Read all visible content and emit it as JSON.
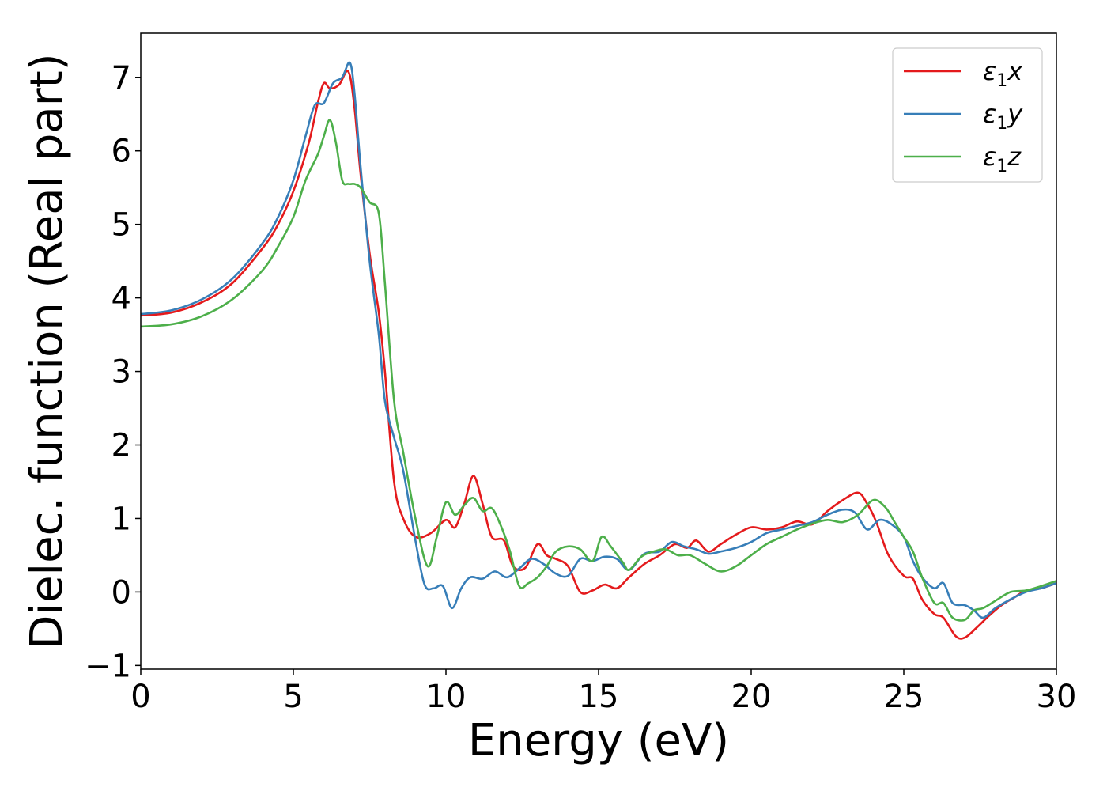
{
  "chart_data": {
    "type": "line",
    "xlabel": "Energy (eV)",
    "ylabel": "Dielec. function (Real part)",
    "xlim": [
      0,
      30
    ],
    "ylim": [
      -1.05,
      7.6
    ],
    "xticks": [
      0,
      5,
      10,
      15,
      20,
      25,
      30
    ],
    "xtick_labels": [
      "0",
      "5",
      "10",
      "15",
      "20",
      "25",
      "30"
    ],
    "yticks": [
      -1,
      0,
      1,
      2,
      3,
      4,
      5,
      6,
      7
    ],
    "ytick_labels": [
      "−1",
      "0",
      "1",
      "2",
      "3",
      "4",
      "5",
      "6",
      "7"
    ],
    "grid": false,
    "legend_position": "top-right",
    "series": [
      {
        "name": "ε1x",
        "legend_main": "ε",
        "legend_sub": "1",
        "legend_tail": "x",
        "color": "#e41a1c",
        "x": [
          0,
          1,
          2,
          3,
          4,
          4.5,
          5,
          5.5,
          5.8,
          6.0,
          6.2,
          6.5,
          6.8,
          7.0,
          7.2,
          7.5,
          7.8,
          8.0,
          8.3,
          8.6,
          9.0,
          9.5,
          10.0,
          10.3,
          10.6,
          10.9,
          11.2,
          11.5,
          11.9,
          12.2,
          12.6,
          13.0,
          13.3,
          13.6,
          14.0,
          14.4,
          14.8,
          15.2,
          15.6,
          16.0,
          16.5,
          17.0,
          17.5,
          17.9,
          18.2,
          18.6,
          19.0,
          19.5,
          20.0,
          20.5,
          21.0,
          21.5,
          22.0,
          22.5,
          23.0,
          23.5,
          23.8,
          24.1,
          24.5,
          25.0,
          25.3,
          25.6,
          26.0,
          26.3,
          26.7,
          27.0,
          27.4,
          27.8,
          28.2,
          28.6,
          29.0,
          29.5,
          30.0
        ],
        "y": [
          3.76,
          3.8,
          3.94,
          4.2,
          4.68,
          5.0,
          5.45,
          6.1,
          6.65,
          6.92,
          6.85,
          6.9,
          7.08,
          6.6,
          5.7,
          4.6,
          3.8,
          3.0,
          1.5,
          1.0,
          0.75,
          0.8,
          0.98,
          0.88,
          1.2,
          1.58,
          1.2,
          0.75,
          0.7,
          0.35,
          0.33,
          0.65,
          0.5,
          0.45,
          0.35,
          0.0,
          0.02,
          0.1,
          0.05,
          0.2,
          0.38,
          0.5,
          0.65,
          0.6,
          0.7,
          0.55,
          0.65,
          0.78,
          0.88,
          0.85,
          0.88,
          0.96,
          0.92,
          1.1,
          1.25,
          1.35,
          1.2,
          0.95,
          0.5,
          0.22,
          0.18,
          -0.1,
          -0.3,
          -0.35,
          -0.6,
          -0.62,
          -0.48,
          -0.32,
          -0.18,
          -0.08,
          0.02,
          0.05,
          0.12
        ]
      },
      {
        "name": "ε1y",
        "legend_main": "ε",
        "legend_sub": "1",
        "legend_tail": "y",
        "color": "#377eb8",
        "x": [
          0,
          1,
          2,
          3,
          4,
          4.5,
          5,
          5.4,
          5.7,
          6.0,
          6.3,
          6.6,
          6.85,
          7.0,
          7.2,
          7.5,
          7.8,
          8.0,
          8.3,
          8.6,
          9.0,
          9.3,
          9.6,
          9.9,
          10.2,
          10.5,
          10.8,
          11.2,
          11.6,
          12.0,
          12.4,
          12.8,
          13.2,
          13.6,
          14.0,
          14.4,
          14.8,
          15.2,
          15.6,
          16.0,
          16.5,
          17.0,
          17.4,
          17.8,
          18.2,
          18.6,
          19.0,
          19.5,
          20.0,
          20.5,
          21.0,
          21.5,
          22.0,
          22.5,
          23.0,
          23.4,
          23.8,
          24.2,
          24.6,
          25.0,
          25.3,
          25.6,
          26.0,
          26.3,
          26.6,
          27.0,
          27.3,
          27.6,
          28.0,
          28.5,
          29.0,
          29.5,
          30.0
        ],
        "y": [
          3.78,
          3.83,
          3.98,
          4.26,
          4.75,
          5.1,
          5.6,
          6.2,
          6.62,
          6.65,
          6.92,
          7.0,
          7.2,
          6.8,
          5.8,
          4.5,
          3.5,
          2.6,
          2.1,
          1.65,
          0.7,
          0.1,
          0.05,
          0.08,
          -0.22,
          0.05,
          0.2,
          0.18,
          0.28,
          0.2,
          0.32,
          0.45,
          0.38,
          0.25,
          0.22,
          0.45,
          0.42,
          0.48,
          0.45,
          0.3,
          0.52,
          0.55,
          0.68,
          0.62,
          0.58,
          0.52,
          0.55,
          0.6,
          0.68,
          0.8,
          0.85,
          0.9,
          0.95,
          1.05,
          1.12,
          1.08,
          0.85,
          0.98,
          0.92,
          0.75,
          0.42,
          0.2,
          0.05,
          0.12,
          -0.15,
          -0.18,
          -0.25,
          -0.35,
          -0.22,
          -0.1,
          0.0,
          0.05,
          0.12
        ]
      },
      {
        "name": "ε1z",
        "legend_main": "ε",
        "legend_sub": "1",
        "legend_tail": "z",
        "color": "#4daf4a",
        "x": [
          0,
          1,
          2,
          3,
          4,
          4.5,
          5,
          5.4,
          5.8,
          6.0,
          6.2,
          6.4,
          6.6,
          6.8,
          7.0,
          7.2,
          7.5,
          7.8,
          8.0,
          8.3,
          8.6,
          9.0,
          9.4,
          9.7,
          10.0,
          10.3,
          10.6,
          10.9,
          11.2,
          11.5,
          11.8,
          12.1,
          12.4,
          12.7,
          13.0,
          13.3,
          13.6,
          14.0,
          14.4,
          14.8,
          15.1,
          15.4,
          15.8,
          16.0,
          16.4,
          16.8,
          17.2,
          17.6,
          18.0,
          18.5,
          19.0,
          19.5,
          20.0,
          20.5,
          21.0,
          21.5,
          22.0,
          22.5,
          23.0,
          23.5,
          24.0,
          24.4,
          24.7,
          25.0,
          25.3,
          25.6,
          26.0,
          26.3,
          26.6,
          27.0,
          27.3,
          27.6,
          28.0,
          28.5,
          29.0,
          29.5,
          30.0
        ],
        "y": [
          3.61,
          3.64,
          3.75,
          3.98,
          4.38,
          4.7,
          5.1,
          5.6,
          5.95,
          6.2,
          6.42,
          6.1,
          5.6,
          5.55,
          5.55,
          5.5,
          5.3,
          5.15,
          4.2,
          2.6,
          1.9,
          1.0,
          0.35,
          0.75,
          1.22,
          1.05,
          1.18,
          1.28,
          1.1,
          1.14,
          0.9,
          0.55,
          0.08,
          0.12,
          0.2,
          0.35,
          0.55,
          0.62,
          0.58,
          0.42,
          0.75,
          0.62,
          0.4,
          0.3,
          0.48,
          0.55,
          0.58,
          0.5,
          0.5,
          0.38,
          0.28,
          0.35,
          0.5,
          0.65,
          0.75,
          0.85,
          0.93,
          0.98,
          0.95,
          1.05,
          1.25,
          1.15,
          0.95,
          0.75,
          0.55,
          0.2,
          -0.15,
          -0.15,
          -0.35,
          -0.38,
          -0.25,
          -0.22,
          -0.12,
          0.0,
          0.02,
          0.08,
          0.15
        ]
      }
    ]
  }
}
